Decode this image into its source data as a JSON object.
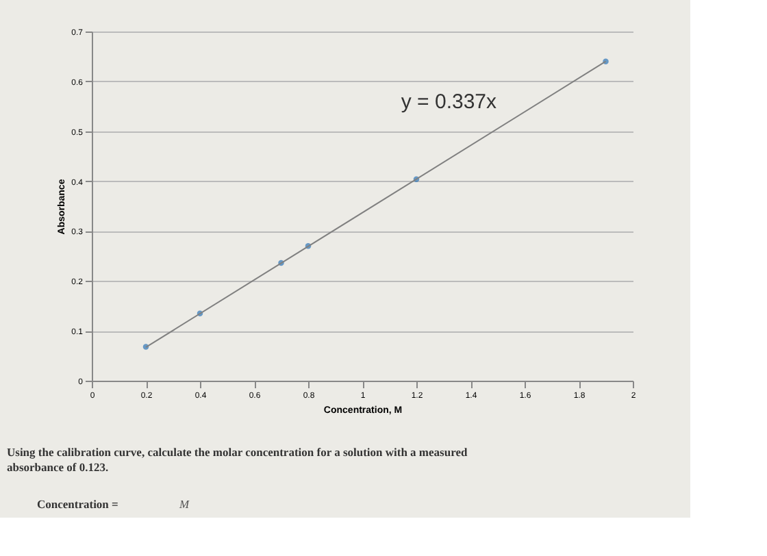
{
  "chart_data": {
    "type": "scatter",
    "xlabel": "Concentration, M",
    "ylabel": "Absorbance",
    "series": [
      {
        "color": "#2e75b6",
        "marker": "circle",
        "x": [
          0.2,
          0.4,
          0.7,
          0.8,
          1.2,
          1.9
        ],
        "values": [
          0.068,
          0.135,
          0.236,
          0.27,
          0.404,
          0.64
        ]
      },
      {
        "type": "line",
        "color": "#808080",
        "marker": "none",
        "line_style": "solid",
        "x": [
          0.2,
          1.9
        ],
        "values": [
          0.067,
          0.64
        ]
      }
    ],
    "xlim": [
      0,
      2
    ],
    "xticks": [
      0,
      0.2,
      0.4,
      0.6,
      0.8,
      1,
      1.2,
      1.4,
      1.6,
      1.8,
      2
    ],
    "ylim": [
      0,
      0.7
    ],
    "yticks": [
      0,
      0.1,
      0.2,
      0.3,
      0.4,
      0.5,
      0.6,
      0.7
    ],
    "grid": "y",
    "annotations": [
      "y = 0.337x",
      "Using the calibration curve, calculate the molar concentration for a solution with a measured absorbance of 0.123.",
      "Concentration =",
      "M"
    ]
  }
}
